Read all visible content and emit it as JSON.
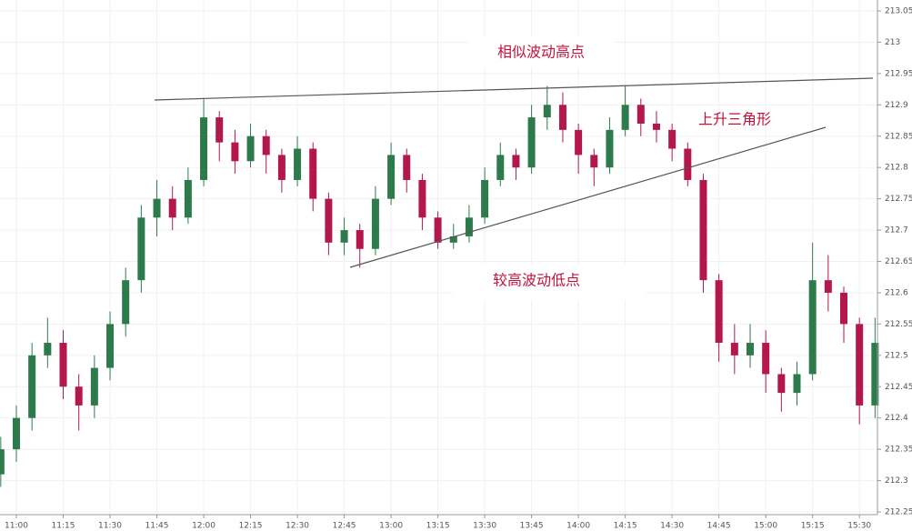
{
  "chart_data": {
    "type": "candlestick",
    "categories": [
      null,
      "11:00",
      null,
      null,
      "11:15",
      null,
      null,
      "11:30",
      null,
      null,
      "11:45",
      null,
      null,
      "12:00",
      null,
      null,
      "12:15",
      null,
      null,
      "12:30",
      null,
      null,
      "12:45",
      null,
      null,
      "13:00",
      null,
      null,
      "13:15",
      null,
      null,
      "13:30",
      null,
      null,
      "13:45",
      null,
      null,
      "14:00",
      null,
      null,
      "14:15",
      null,
      null,
      "14:30",
      null,
      null,
      "14:45",
      null,
      null,
      "15:00",
      null,
      null,
      "15:15",
      null,
      null,
      "15:30",
      null
    ],
    "open": [
      212.31,
      212.35,
      212.4,
      212.5,
      212.52,
      212.45,
      212.42,
      212.48,
      212.55,
      212.62,
      212.72,
      212.75,
      212.72,
      212.78,
      212.88,
      212.84,
      212.81,
      212.85,
      212.82,
      212.78,
      212.83,
      212.75,
      212.68,
      212.7,
      212.67,
      212.75,
      212.82,
      212.78,
      212.72,
      212.68,
      212.69,
      212.72,
      212.78,
      212.82,
      212.8,
      212.88,
      212.9,
      212.86,
      212.82,
      212.8,
      212.86,
      212.9,
      212.87,
      212.86,
      212.83,
      212.78,
      212.62,
      212.52,
      212.5,
      212.52,
      212.47,
      212.44,
      212.47,
      212.62,
      212.6,
      212.55,
      212.42
    ],
    "high": [
      212.37,
      212.42,
      212.52,
      212.56,
      212.54,
      212.47,
      212.5,
      212.57,
      212.64,
      212.74,
      212.78,
      212.77,
      212.8,
      212.91,
      212.89,
      212.86,
      212.87,
      212.86,
      212.83,
      212.85,
      212.84,
      212.76,
      212.72,
      212.71,
      212.77,
      212.84,
      212.83,
      212.79,
      212.73,
      212.71,
      212.74,
      212.8,
      212.84,
      212.83,
      212.9,
      212.93,
      212.92,
      212.87,
      212.83,
      212.88,
      212.93,
      212.91,
      212.89,
      212.87,
      212.84,
      212.79,
      212.63,
      212.55,
      212.55,
      212.54,
      212.48,
      212.49,
      212.68,
      212.66,
      212.61,
      212.56,
      212.56
    ],
    "low": [
      212.29,
      212.33,
      212.38,
      212.48,
      212.43,
      212.38,
      212.4,
      212.46,
      212.53,
      212.6,
      212.69,
      212.7,
      212.71,
      212.77,
      212.81,
      212.79,
      212.8,
      212.79,
      212.76,
      212.77,
      212.73,
      212.66,
      212.66,
      212.64,
      212.66,
      212.74,
      212.76,
      212.7,
      212.67,
      212.67,
      212.68,
      212.71,
      212.77,
      212.78,
      212.79,
      212.86,
      212.84,
      212.79,
      212.77,
      212.79,
      212.85,
      212.85,
      212.84,
      212.81,
      212.77,
      212.6,
      212.49,
      212.47,
      212.48,
      212.44,
      212.41,
      212.42,
      212.46,
      212.57,
      212.52,
      212.39,
      212.4
    ],
    "close": [
      212.35,
      212.4,
      212.5,
      212.52,
      212.45,
      212.42,
      212.48,
      212.55,
      212.62,
      212.72,
      212.75,
      212.72,
      212.78,
      212.88,
      212.84,
      212.81,
      212.85,
      212.82,
      212.78,
      212.83,
      212.75,
      212.68,
      212.7,
      212.67,
      212.75,
      212.82,
      212.78,
      212.72,
      212.68,
      212.69,
      212.72,
      212.78,
      212.82,
      212.8,
      212.88,
      212.9,
      212.86,
      212.82,
      212.8,
      212.86,
      212.9,
      212.87,
      212.86,
      212.83,
      212.78,
      212.62,
      212.52,
      212.5,
      212.52,
      212.47,
      212.44,
      212.47,
      212.62,
      212.6,
      212.55,
      212.42,
      212.52
    ],
    "up_color": "#2d7a4a",
    "down_color": "#b3174b",
    "ylim": [
      212.25,
      213.05
    ],
    "yticks": [
      212.25,
      212.3,
      212.35,
      212.4,
      212.45,
      212.5,
      212.55,
      212.6,
      212.65,
      212.7,
      212.75,
      212.8,
      212.85,
      212.9,
      212.95,
      213,
      213.05
    ],
    "grid": true,
    "annotations": [
      "相似波动高点",
      "上升三角形",
      "较高波动低点"
    ]
  }
}
